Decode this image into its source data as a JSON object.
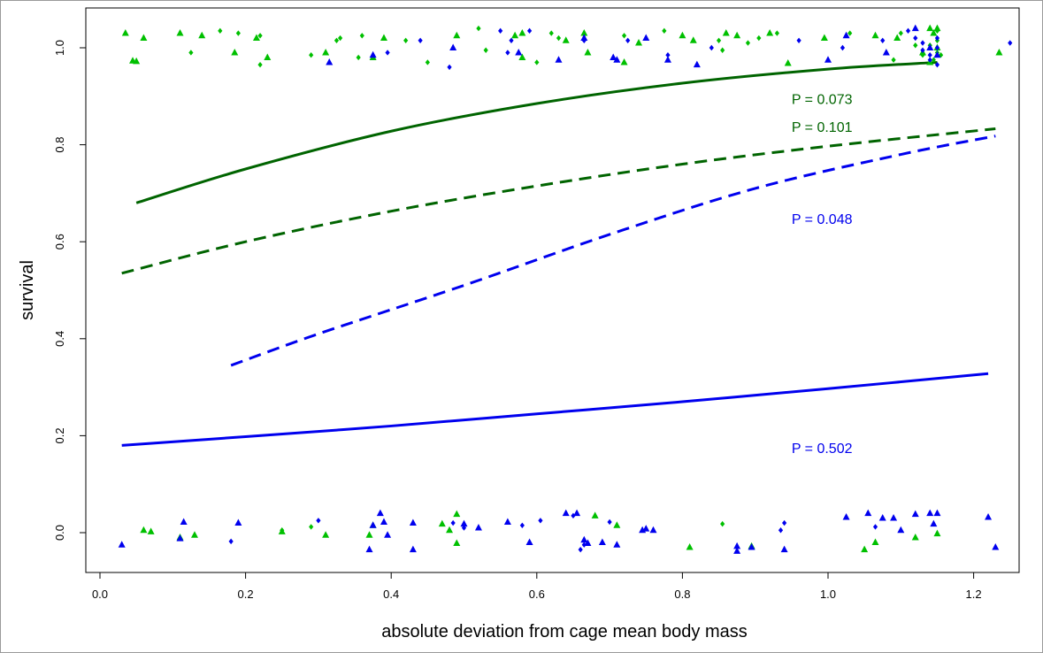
{
  "chart_data": {
    "type": "scatter",
    "title": "",
    "xlabel": "absolute deviation from cage mean body mass",
    "ylabel": "survival",
    "xlim": [
      -0.02,
      1.27
    ],
    "ylim": [
      -0.08,
      1.08
    ],
    "x_ticks": [
      "0.0",
      "0.2",
      "0.4",
      "0.6",
      "0.8",
      "1.0",
      "1.2"
    ],
    "y_ticks": [
      "0.0",
      "0.2",
      "0.4",
      "0.6",
      "0.8",
      "1.0"
    ],
    "grid": false,
    "colors": {
      "green_curve": "#006400",
      "green_points": "#00c000",
      "blue": "#0000ee"
    },
    "curves": [
      {
        "color": "green_curve",
        "dash": false,
        "x": [
          0.05,
          0.2,
          0.4,
          0.6,
          0.8,
          1.0,
          1.15
        ],
        "y": [
          0.68,
          0.75,
          0.828,
          0.885,
          0.927,
          0.956,
          0.97
        ]
      },
      {
        "color": "green_curve",
        "dash": true,
        "x": [
          0.03,
          0.2,
          0.4,
          0.6,
          0.8,
          1.0,
          1.23
        ],
        "y": [
          0.535,
          0.6,
          0.663,
          0.715,
          0.76,
          0.797,
          0.833
        ]
      },
      {
        "color": "blue",
        "dash": true,
        "x": [
          0.18,
          0.3,
          0.5,
          0.7,
          0.9,
          1.1,
          1.23
        ],
        "y": [
          0.345,
          0.41,
          0.51,
          0.615,
          0.71,
          0.78,
          0.818
        ]
      },
      {
        "color": "blue",
        "dash": false,
        "x": [
          0.03,
          0.2,
          0.4,
          0.6,
          0.8,
          1.0,
          1.22
        ],
        "y": [
          0.18,
          0.198,
          0.22,
          0.245,
          0.27,
          0.297,
          0.328
        ]
      }
    ],
    "annotations": [
      {
        "text": "P = 0.073",
        "color": "green_curve",
        "x": 0.95,
        "y": 0.895
      },
      {
        "text": "P = 0.101",
        "color": "green_curve",
        "x": 0.95,
        "y": 0.838
      },
      {
        "text": "P = 0.048",
        "color": "blue",
        "x": 0.95,
        "y": 0.648
      },
      {
        "text": "P = 0.502",
        "color": "blue",
        "x": 0.95,
        "y": 0.175
      }
    ],
    "points": [
      {
        "color": "green_points",
        "shape": "triangle",
        "xy": [
          [
            0.035,
            1.03
          ],
          [
            0.045,
            0.973
          ],
          [
            0.05,
            0.972
          ],
          [
            0.06,
            1.02
          ],
          [
            0.11,
            1.03
          ],
          [
            0.14,
            1.025
          ],
          [
            0.185,
            0.99
          ],
          [
            0.215,
            1.02
          ],
          [
            0.23,
            0.98
          ],
          [
            0.31,
            0.99
          ],
          [
            0.375,
            0.98
          ],
          [
            0.39,
            1.02
          ],
          [
            0.49,
            1.025
          ],
          [
            0.57,
            1.025
          ],
          [
            0.58,
            0.98
          ],
          [
            0.58,
            1.03
          ],
          [
            0.64,
            1.015
          ],
          [
            0.665,
            1.03
          ],
          [
            0.67,
            0.99
          ],
          [
            0.72,
            0.97
          ],
          [
            0.74,
            1.01
          ],
          [
            0.8,
            1.025
          ],
          [
            0.815,
            1.015
          ],
          [
            0.86,
            1.03
          ],
          [
            0.875,
            1.025
          ],
          [
            0.92,
            1.03
          ],
          [
            0.945,
            0.968
          ],
          [
            0.995,
            1.02
          ],
          [
            1.065,
            1.025
          ],
          [
            1.095,
            1.02
          ],
          [
            1.13,
            0.99
          ],
          [
            1.14,
            1.04
          ],
          [
            1.145,
            1.03
          ],
          [
            1.15,
            1.04
          ],
          [
            1.14,
            0.97
          ],
          [
            1.15,
            1.0
          ],
          [
            1.235,
            0.99
          ],
          [
            0.06,
            0.005
          ],
          [
            0.07,
            0.002
          ],
          [
            0.11,
            -0.01
          ],
          [
            0.13,
            -0.005
          ],
          [
            0.25,
            0.002
          ],
          [
            0.31,
            -0.005
          ],
          [
            0.37,
            -0.005
          ],
          [
            0.375,
            0.015
          ],
          [
            0.47,
            0.018
          ],
          [
            0.48,
            0.005
          ],
          [
            0.49,
            -0.022
          ],
          [
            0.49,
            0.038
          ],
          [
            0.68,
            0.035
          ],
          [
            0.71,
            0.015
          ],
          [
            0.81,
            -0.03
          ],
          [
            0.895,
            -0.028
          ],
          [
            1.05,
            -0.035
          ],
          [
            1.065,
            -0.02
          ],
          [
            1.12,
            -0.01
          ],
          [
            1.15,
            -0.002
          ]
        ]
      },
      {
        "color": "green_points",
        "shape": "diamond",
        "xy": [
          [
            0.125,
            0.99
          ],
          [
            0.165,
            1.035
          ],
          [
            0.19,
            1.03
          ],
          [
            0.22,
            1.025
          ],
          [
            0.22,
            0.965
          ],
          [
            0.29,
            0.985
          ],
          [
            0.325,
            1.015
          ],
          [
            0.33,
            1.02
          ],
          [
            0.355,
            0.98
          ],
          [
            0.36,
            1.025
          ],
          [
            0.42,
            1.015
          ],
          [
            0.45,
            0.97
          ],
          [
            0.52,
            1.04
          ],
          [
            0.53,
            0.995
          ],
          [
            0.6,
            0.97
          ],
          [
            0.62,
            1.03
          ],
          [
            0.63,
            1.02
          ],
          [
            0.72,
            1.025
          ],
          [
            0.775,
            1.035
          ],
          [
            0.85,
            1.015
          ],
          [
            0.855,
            0.995
          ],
          [
            0.89,
            1.01
          ],
          [
            0.905,
            1.02
          ],
          [
            0.93,
            1.03
          ],
          [
            1.03,
            1.03
          ],
          [
            1.09,
            0.975
          ],
          [
            1.1,
            1.03
          ],
          [
            1.12,
            1.005
          ],
          [
            1.13,
            0.985
          ],
          [
            1.14,
            1.005
          ],
          [
            1.145,
            0.975
          ],
          [
            1.15,
            1.035
          ],
          [
            1.15,
            1.015
          ],
          [
            1.15,
            0.99
          ],
          [
            1.155,
            0.985
          ],
          [
            0.25,
            0.005
          ],
          [
            0.29,
            0.012
          ],
          [
            0.855,
            0.018
          ]
        ]
      },
      {
        "color": "blue",
        "shape": "triangle",
        "xy": [
          [
            0.315,
            0.97
          ],
          [
            0.375,
            0.985
          ],
          [
            0.485,
            1.0
          ],
          [
            0.575,
            0.99
          ],
          [
            0.63,
            0.975
          ],
          [
            0.665,
            1.02
          ],
          [
            0.705,
            0.98
          ],
          [
            0.71,
            0.975
          ],
          [
            0.75,
            1.02
          ],
          [
            0.78,
            0.975
          ],
          [
            0.82,
            0.965
          ],
          [
            1.0,
            0.975
          ],
          [
            1.025,
            1.025
          ],
          [
            1.08,
            0.99
          ],
          [
            1.12,
            1.04
          ],
          [
            1.14,
            1.0
          ],
          [
            1.15,
            0.985
          ],
          [
            0.03,
            -0.025
          ],
          [
            0.11,
            -0.012
          ],
          [
            0.115,
            0.022
          ],
          [
            0.19,
            0.02
          ],
          [
            0.37,
            -0.035
          ],
          [
            0.375,
            0.015
          ],
          [
            0.385,
            0.04
          ],
          [
            0.39,
            0.022
          ],
          [
            0.395,
            -0.005
          ],
          [
            0.43,
            0.02
          ],
          [
            0.43,
            -0.035
          ],
          [
            0.5,
            0.018
          ],
          [
            0.52,
            0.01
          ],
          [
            0.56,
            0.022
          ],
          [
            0.59,
            -0.02
          ],
          [
            0.64,
            0.04
          ],
          [
            0.655,
            0.04
          ],
          [
            0.665,
            -0.015
          ],
          [
            0.67,
            -0.022
          ],
          [
            0.69,
            -0.02
          ],
          [
            0.71,
            -0.025
          ],
          [
            0.745,
            0.005
          ],
          [
            0.75,
            0.008
          ],
          [
            0.76,
            0.005
          ],
          [
            0.875,
            -0.028
          ],
          [
            0.875,
            -0.038
          ],
          [
            0.895,
            -0.03
          ],
          [
            0.94,
            -0.035
          ],
          [
            1.025,
            0.032
          ],
          [
            1.055,
            0.04
          ],
          [
            1.075,
            0.03
          ],
          [
            1.09,
            0.03
          ],
          [
            1.1,
            0.005
          ],
          [
            1.12,
            0.038
          ],
          [
            1.14,
            0.04
          ],
          [
            1.145,
            0.018
          ],
          [
            1.15,
            0.04
          ],
          [
            1.22,
            0.032
          ],
          [
            1.23,
            -0.03
          ]
        ]
      },
      {
        "color": "blue",
        "shape": "diamond",
        "xy": [
          [
            0.395,
            0.99
          ],
          [
            0.44,
            1.015
          ],
          [
            0.48,
            0.96
          ],
          [
            0.55,
            1.035
          ],
          [
            0.56,
            0.99
          ],
          [
            0.565,
            1.015
          ],
          [
            0.59,
            1.035
          ],
          [
            0.665,
            1.015
          ],
          [
            0.71,
            0.975
          ],
          [
            0.725,
            1.015
          ],
          [
            0.78,
            0.985
          ],
          [
            0.84,
            1.0
          ],
          [
            0.96,
            1.015
          ],
          [
            1.02,
            1.0
          ],
          [
            1.075,
            1.015
          ],
          [
            1.11,
            1.035
          ],
          [
            1.12,
            1.02
          ],
          [
            1.13,
            1.01
          ],
          [
            1.13,
            0.995
          ],
          [
            1.14,
            0.985
          ],
          [
            1.14,
            0.975
          ],
          [
            1.15,
            1.02
          ],
          [
            1.15,
            1.0
          ],
          [
            1.15,
            0.965
          ],
          [
            1.25,
            1.01
          ],
          [
            0.18,
            -0.018
          ],
          [
            0.3,
            0.025
          ],
          [
            0.485,
            0.02
          ],
          [
            0.5,
            0.01
          ],
          [
            0.58,
            0.015
          ],
          [
            0.605,
            0.025
          ],
          [
            0.65,
            0.035
          ],
          [
            0.66,
            -0.035
          ],
          [
            0.665,
            -0.025
          ],
          [
            0.7,
            0.022
          ],
          [
            0.935,
            0.005
          ],
          [
            0.94,
            0.02
          ],
          [
            1.065,
            0.012
          ]
        ]
      }
    ]
  }
}
